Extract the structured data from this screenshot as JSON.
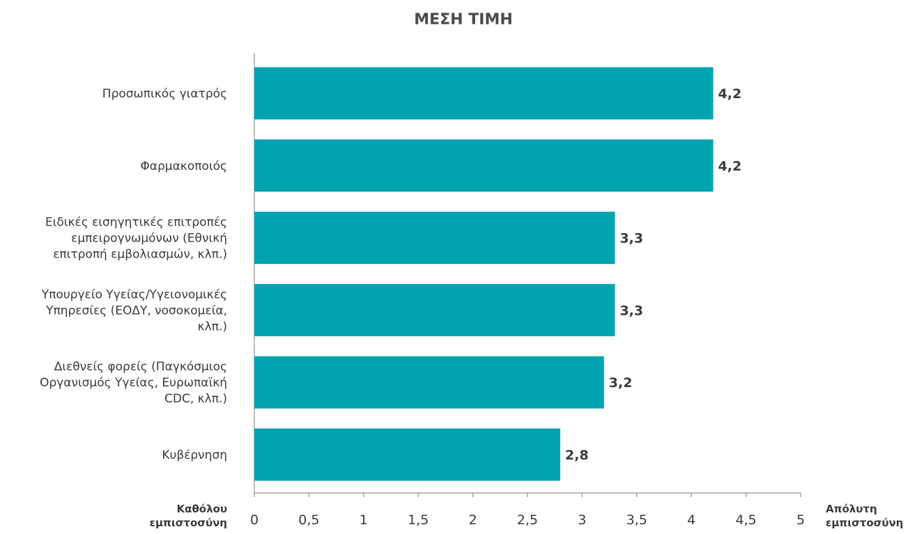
{
  "chart_data": {
    "type": "bar",
    "orientation": "horizontal",
    "title": "ΜΕΣΗ ΤΙΜΗ",
    "categories": [
      [
        "Προσωπικός γιατρός"
      ],
      [
        "Φαρμακοποιός"
      ],
      [
        "Ειδικές εισηγητικές επιτροπές",
        "εμπειρογνωμόνων (Εθνική",
        "επιτροπή εμβολιασμών, κλπ.)"
      ],
      [
        "Υπουργείο Υγείας/Υγειονομικές",
        "Υπηρεσίες (ΕΟΔΥ, νοσοκομεία,",
        "κλπ.)"
      ],
      [
        "Διεθνείς φορείς (Παγκόσμιος",
        "Οργανισμός Υγείας, Ευρωπαϊκή",
        "CDC, κλπ.)"
      ],
      [
        "Κυβέρνηση"
      ]
    ],
    "values": [
      4.2,
      4.2,
      3.3,
      3.3,
      3.2,
      2.8
    ],
    "value_labels": [
      "4,2",
      "4,2",
      "3,3",
      "3,3",
      "3,2",
      "2,8"
    ],
    "xlim": [
      0,
      5
    ],
    "x_ticks": [
      0,
      0.5,
      1,
      1.5,
      2,
      2.5,
      3,
      3.5,
      4,
      4.5,
      5
    ],
    "x_tick_labels": [
      "0",
      "0,5",
      "1",
      "1,5",
      "2",
      "2,5",
      "3",
      "3,5",
      "4",
      "4,5",
      "5"
    ],
    "x_min_label": [
      "Καθόλου",
      "εμπιστοσύνη"
    ],
    "x_max_label": [
      "Απόλυτη",
      "εμπιστοσύνη"
    ],
    "bar_color": "#00a3b0",
    "axis_color": "#999999",
    "grid": false,
    "legend": "none"
  }
}
